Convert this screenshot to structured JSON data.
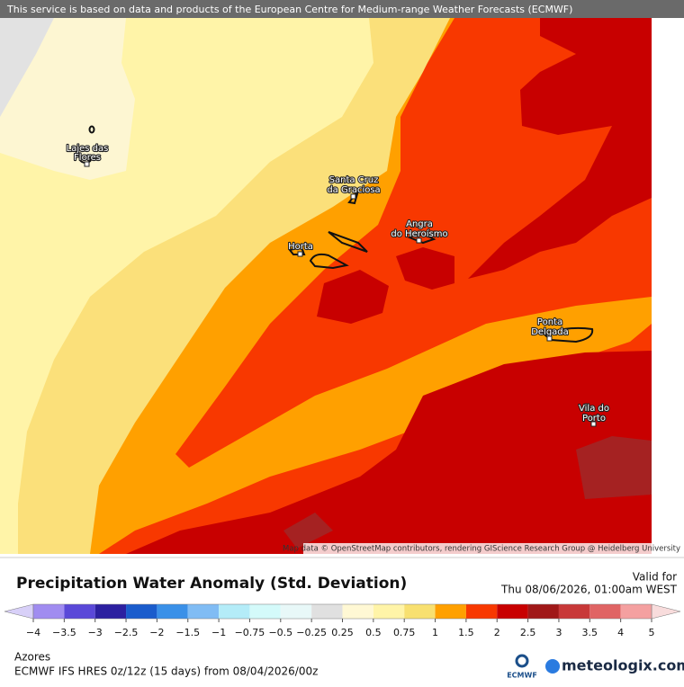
{
  "banner": "This service is based on data and products of the European Centre for Medium-range Weather Forecasts (ECMWF)",
  "map": {
    "places": [
      [
        "Lajes das",
        "Flores"
      ],
      [
        "Santa Cruz",
        "da Graciosa"
      ],
      [
        "Angra",
        "do Heroísmo"
      ],
      [
        "Horta"
      ],
      [
        "Ponta",
        "Delgada"
      ],
      [
        "Vila do",
        "Porto"
      ]
    ],
    "attribution": "Map data © OpenStreetMap contributors, rendering GIScience Research Group @ Heidelberg University"
  },
  "header": {
    "title": "Precipitation Water Anomaly (Std. Deviation)",
    "valid_label": "Valid for",
    "valid_time": "Thu 08/06/2026, 01:00am WEST"
  },
  "legend": {
    "ticks": [
      {
        "value": -4,
        "label": "−4"
      },
      {
        "value": -3.5,
        "label": "−3.5"
      },
      {
        "value": -3,
        "label": "−3"
      },
      {
        "value": -2.5,
        "label": "−2.5"
      },
      {
        "value": -2,
        "label": "−2"
      },
      {
        "value": -1.5,
        "label": "−1.5"
      },
      {
        "value": -1,
        "label": "−1"
      },
      {
        "value": -0.75,
        "label": "−0.75"
      },
      {
        "value": -0.5,
        "label": "−0.5"
      },
      {
        "value": -0.25,
        "label": "−0.25"
      },
      0.25,
      0.5,
      0.75,
      1,
      1.5,
      2,
      2.5,
      3,
      3.5,
      4,
      5
    ],
    "colors": [
      "#a08cf0",
      "#5a48d8",
      "#2c20a0",
      "#1a5ccc",
      "#3a90e8",
      "#80bcf4",
      "#b4ecf8",
      "#d4fafa",
      "#e8f8f8",
      "#e0e0e0",
      "#fff8d4",
      "#fff4a8",
      "#f8e070",
      "#ffa000",
      "#f83800",
      "#c80000",
      "#a01818",
      "#c83838",
      "#e06464",
      "#f4a0a0"
    ],
    "under_color": "#d8d0f8",
    "over_color": "#f8dcdc"
  },
  "footer": {
    "region": "Azores",
    "model": "ECMWF IFS HRES 0z/12z (15 days) from 08/04/2026/00z"
  },
  "logos": {
    "ecmwf": "ECMWF",
    "meteologix": "meteologix.com"
  }
}
